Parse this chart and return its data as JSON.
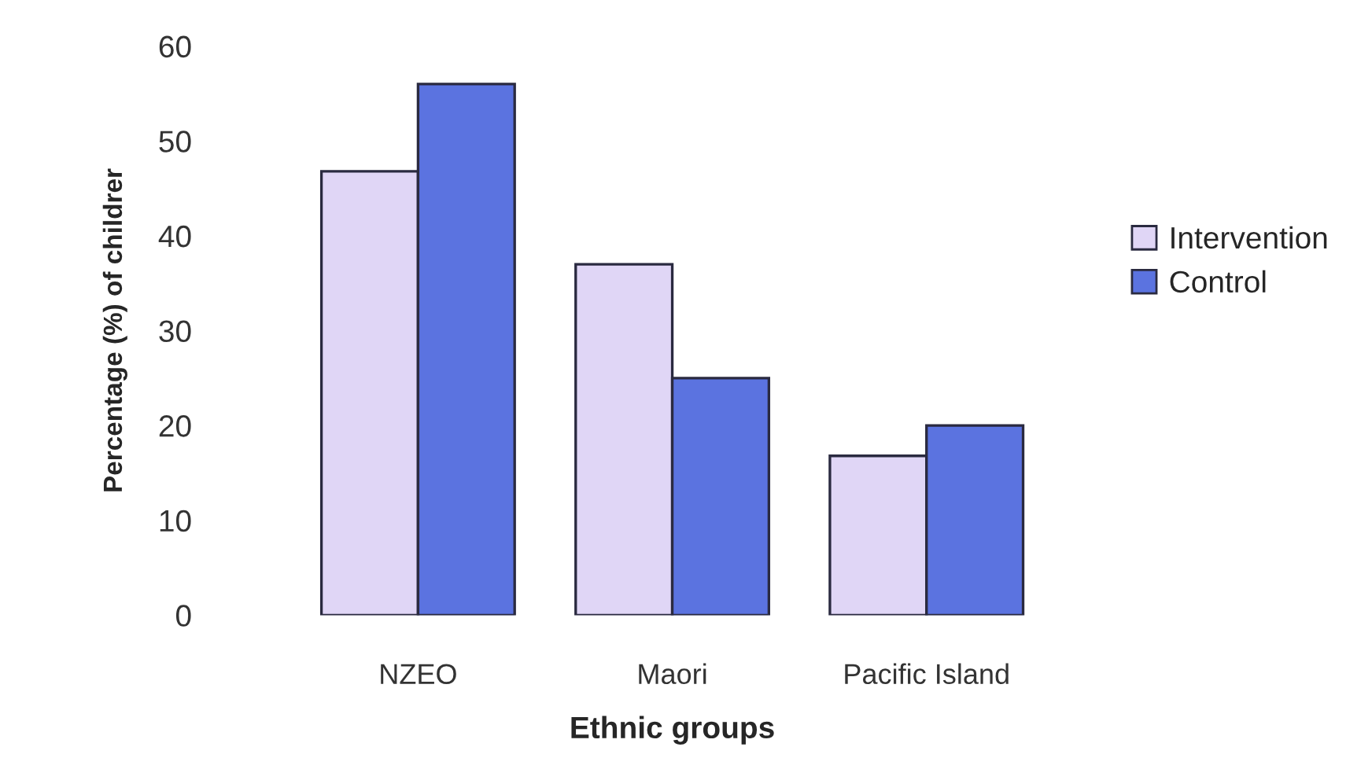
{
  "chart_data": {
    "type": "bar",
    "xlabel": "Ethnic groups",
    "ylabel": "Percentage (%) of childrer",
    "categories": [
      "NZEO",
      "Maori",
      "Pacific Island"
    ],
    "series": [
      {
        "name": "Intervention",
        "color": "#e0d6f6",
        "values": [
          46.8,
          37,
          16.8
        ]
      },
      {
        "name": "Control",
        "color": "#5b73e0",
        "values": [
          56,
          25,
          20
        ]
      }
    ],
    "ylim": [
      0,
      60
    ],
    "yticks": [
      0,
      10,
      20,
      30,
      40,
      50,
      60
    ],
    "grid": false,
    "legend": "right"
  }
}
